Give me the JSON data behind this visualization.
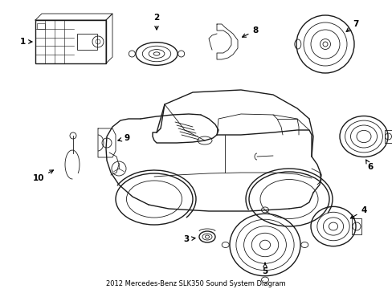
{
  "title": "2012 Mercedes-Benz SLK350 Sound System Diagram",
  "bg_color": "#ffffff",
  "line_color": "#1a1a1a",
  "label_color": "#000000",
  "figsize": [
    4.89,
    3.6
  ],
  "dpi": 100
}
